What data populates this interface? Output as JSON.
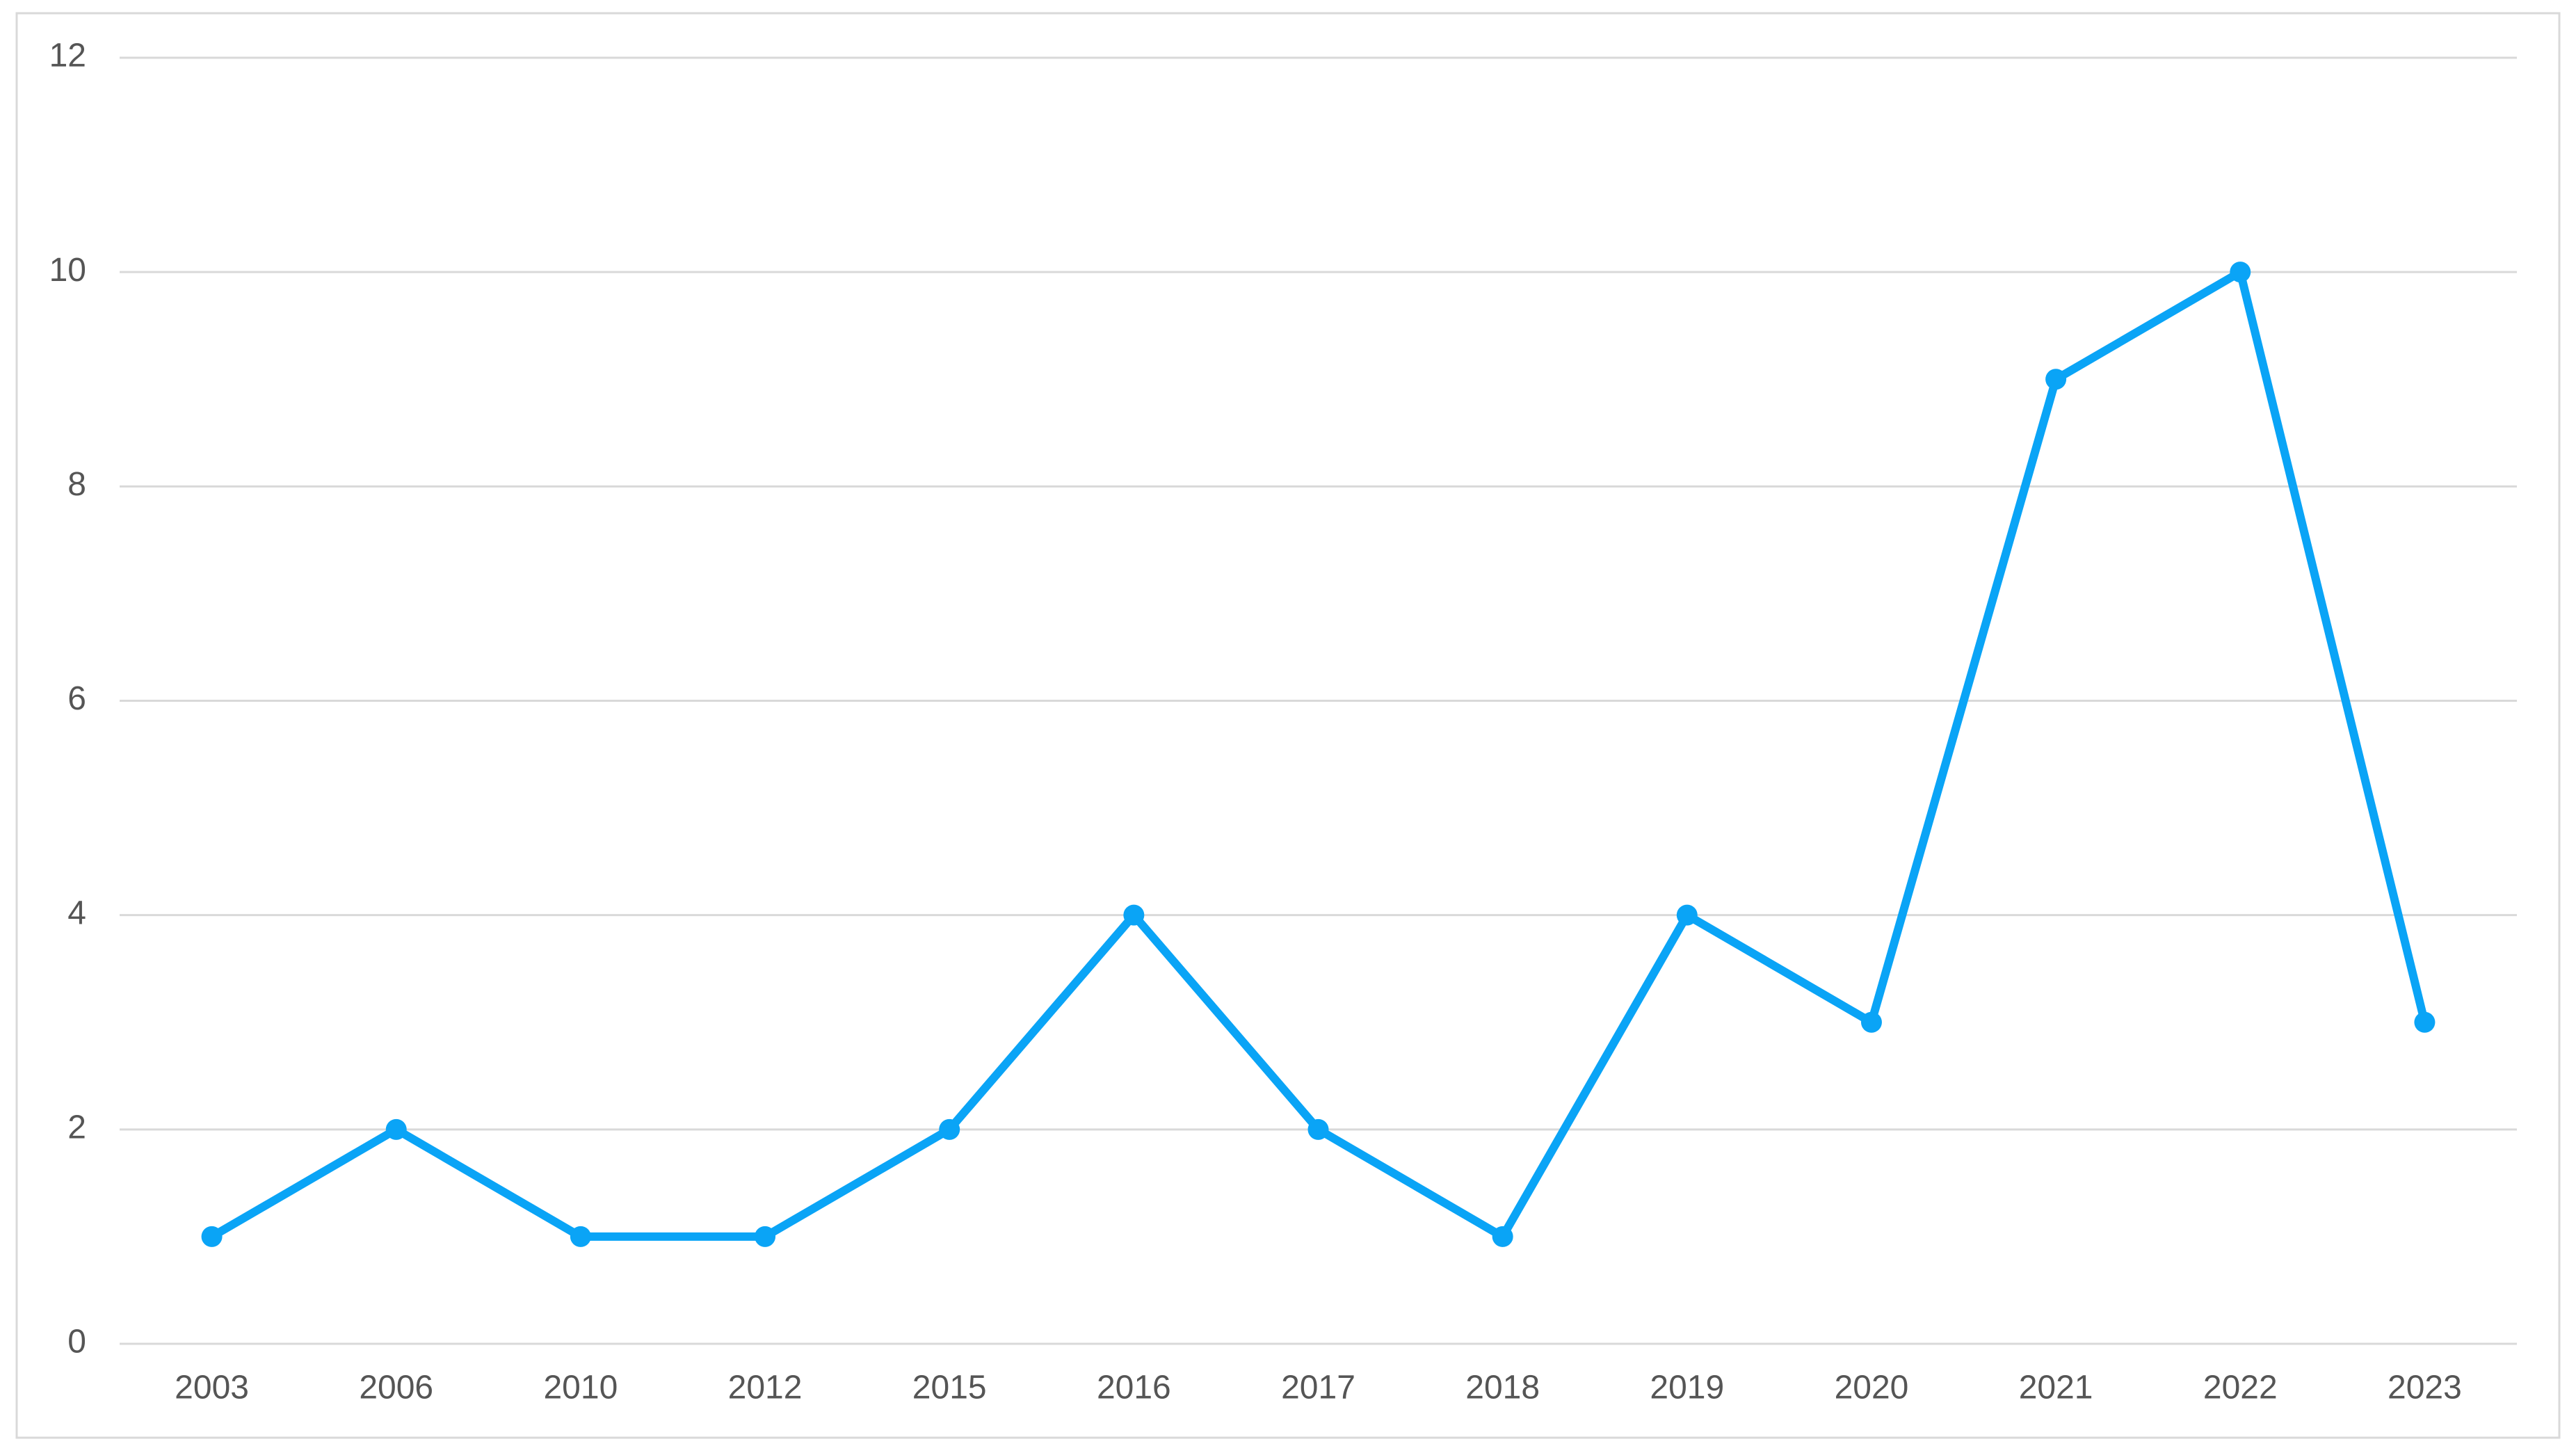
{
  "chart_data": {
    "type": "line",
    "categories": [
      "2003",
      "2006",
      "2010",
      "2012",
      "2015",
      "2016",
      "2017",
      "2018",
      "2019",
      "2020",
      "2021",
      "2022",
      "2023"
    ],
    "series": [
      {
        "color": "#0aa4f6",
        "values": [
          1,
          2,
          1,
          1,
          2,
          4,
          2,
          1,
          4,
          3,
          9,
          10,
          3
        ]
      }
    ],
    "ylim": [
      0,
      12
    ],
    "yticks": [
      0,
      2,
      4,
      6,
      8,
      10,
      12
    ],
    "grid": true
  }
}
